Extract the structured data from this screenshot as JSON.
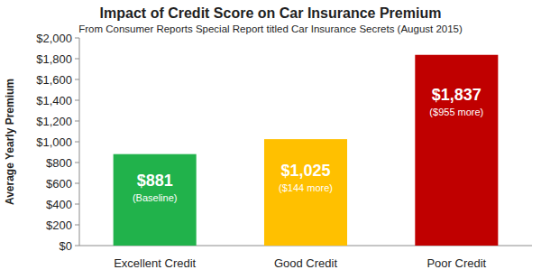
{
  "chart_data": {
    "type": "bar",
    "title": "Impact of Credit Score on Car Insurance Premium",
    "subtitle": "From Consumer Reports Special Report titled Car Insurance Secrets (August 2015)",
    "y_label": "Average Yearly Premium",
    "categories": [
      "Excellent Credit",
      "Good Credit",
      "Poor Credit"
    ],
    "values": [
      881,
      1025,
      1837
    ],
    "value_labels": [
      "$881",
      "$1,025",
      "$1,837"
    ],
    "annotations": [
      "(Baseline)",
      "($144 more)",
      "($955 more)"
    ],
    "colors": [
      "#21b24b",
      "#ffc000",
      "#c00000"
    ],
    "ylim": [
      0,
      2000
    ],
    "yticks": [
      {
        "value": 0,
        "label": "$0"
      },
      {
        "value": 200,
        "label": "$200"
      },
      {
        "value": 400,
        "label": "$400"
      },
      {
        "value": 600,
        "label": "$600"
      },
      {
        "value": 800,
        "label": "$800"
      },
      {
        "value": 1000,
        "label": "$1,000"
      },
      {
        "value": 1200,
        "label": "$1,200"
      },
      {
        "value": 1400,
        "label": "$1,400"
      },
      {
        "value": 1600,
        "label": "$1,600"
      },
      {
        "value": 1800,
        "label": "$1,800"
      },
      {
        "value": 2000,
        "label": "$2,000"
      }
    ],
    "grid": false,
    "data_labels": true
  }
}
